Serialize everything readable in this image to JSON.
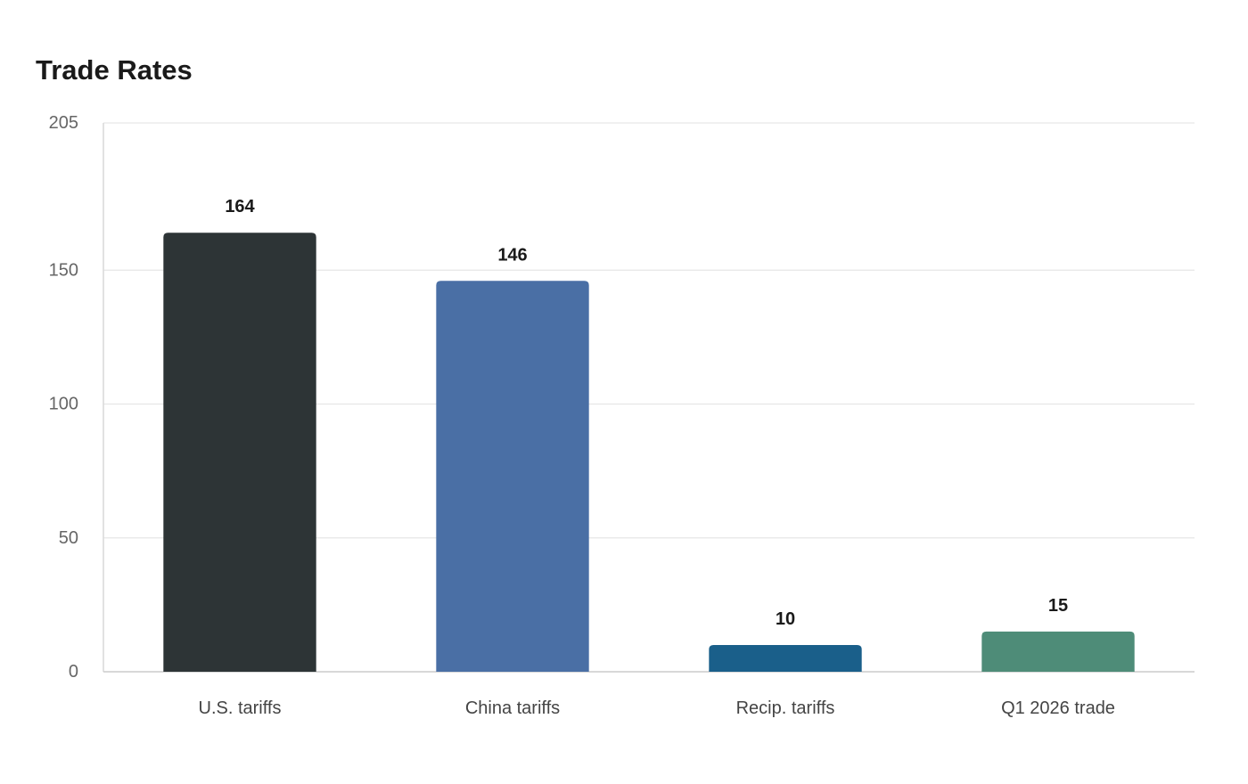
{
  "chart_data": {
    "type": "bar",
    "title": "Trade Rates",
    "categories": [
      "U.S. tariffs",
      "China tariffs",
      "Recip. tariffs",
      "Q1 2026 trade"
    ],
    "values": [
      164,
      146,
      10,
      15
    ],
    "value_labels": [
      "164",
      "146",
      "10",
      "15"
    ],
    "colors": [
      "#2d3436",
      "#4a6fa5",
      "#1a5f8a",
      "#4e8c78"
    ],
    "ylim": [
      0,
      205
    ],
    "yticks": [
      0,
      50,
      100,
      150,
      205
    ],
    "ytick_labels": [
      "0",
      "50",
      "100",
      "150",
      "205"
    ],
    "xlabel": "",
    "ylabel": "",
    "grid": true,
    "legend": "none"
  }
}
